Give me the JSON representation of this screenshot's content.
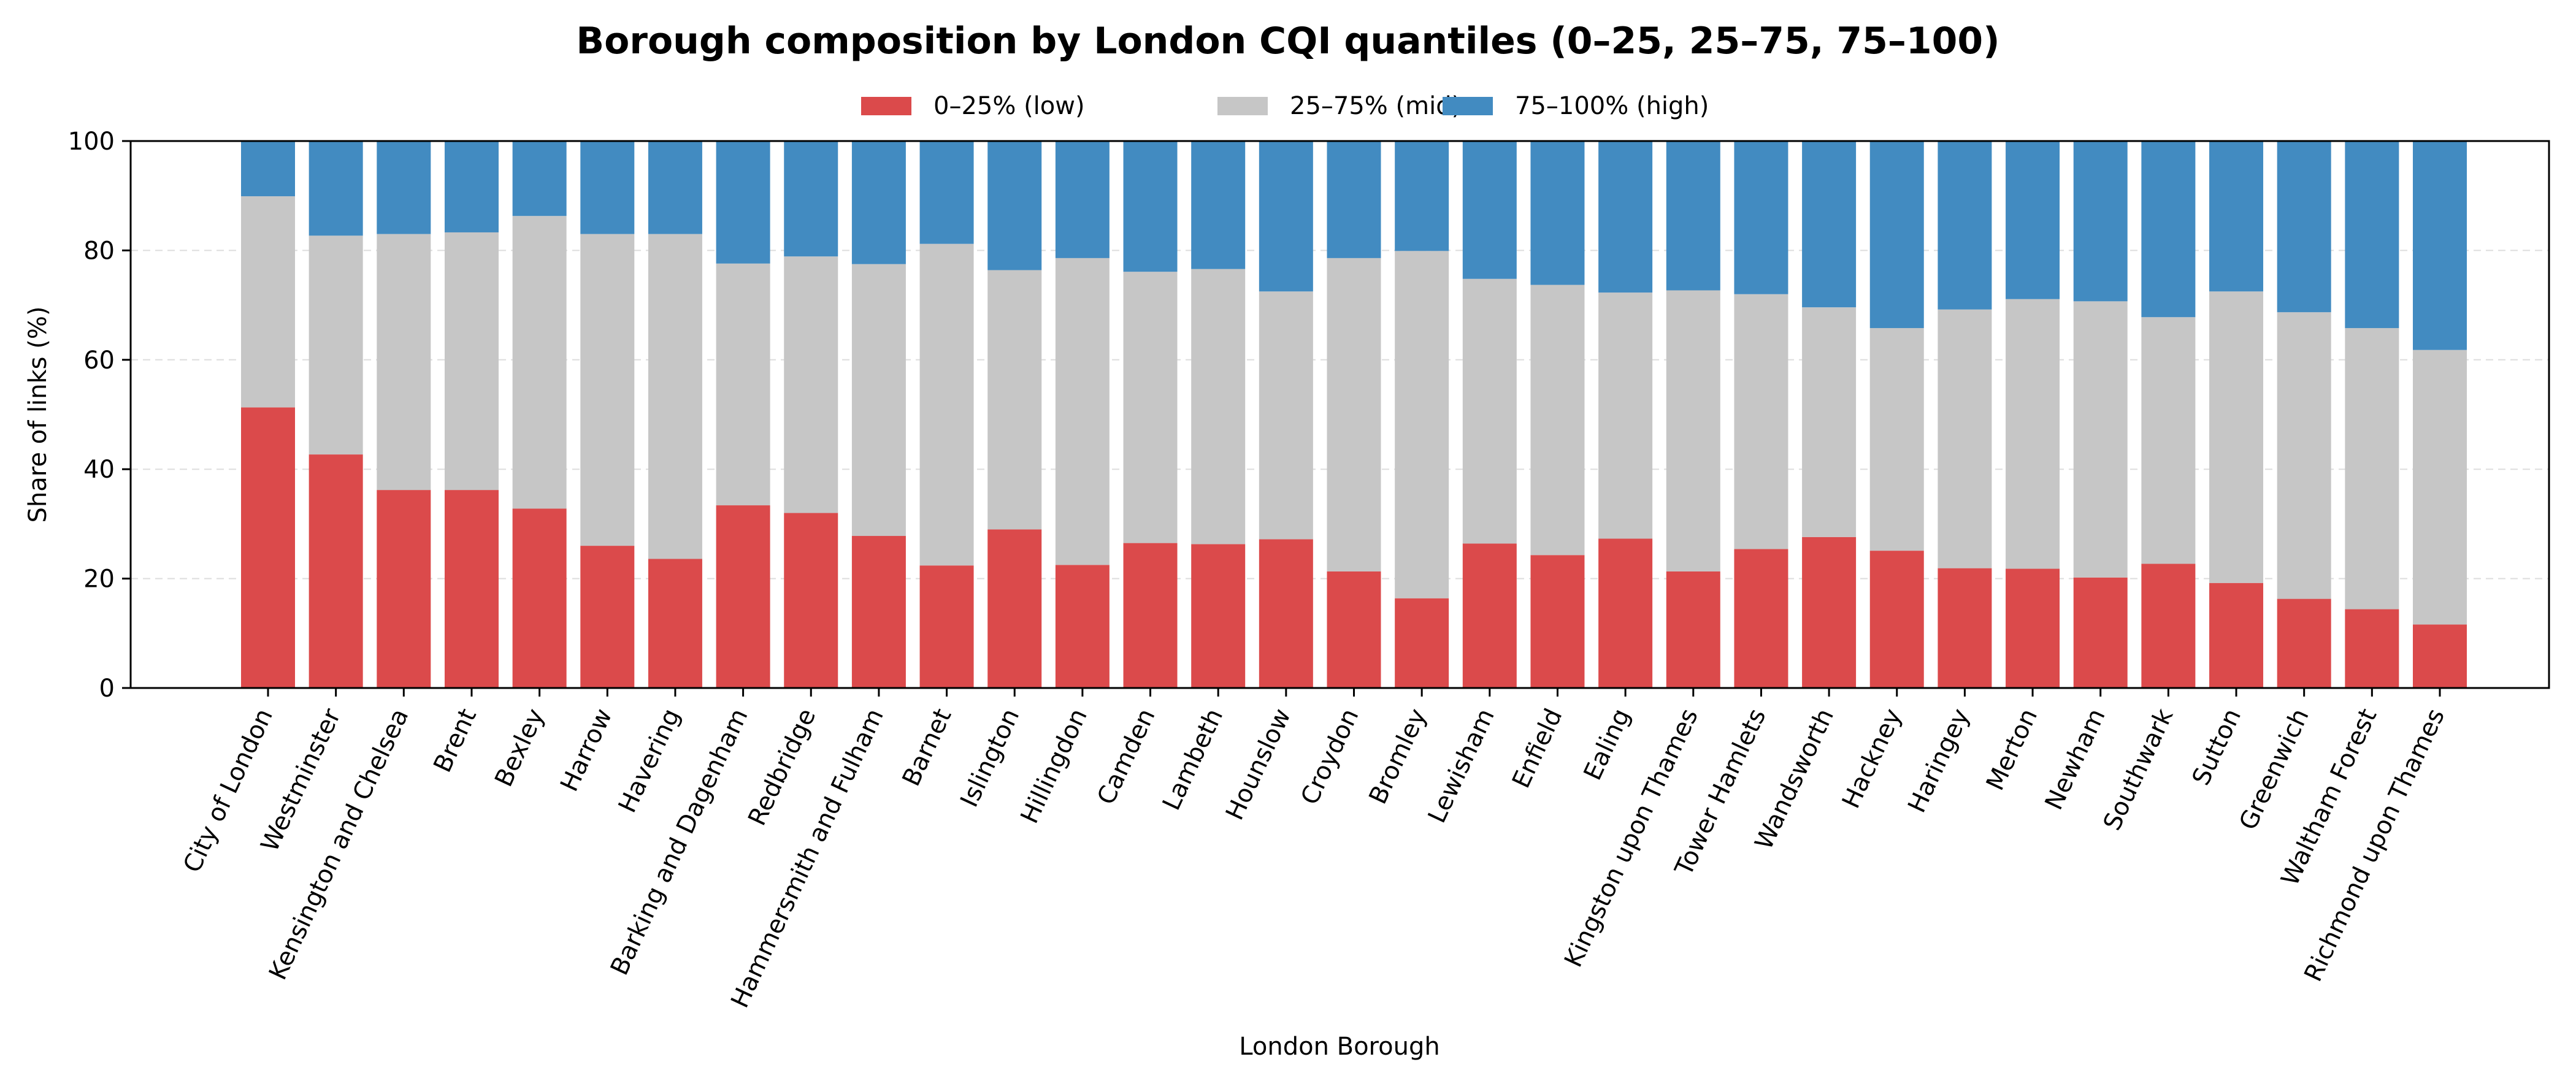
{
  "chart_data": {
    "type": "bar",
    "stacked": true,
    "title": "Borough composition by London CQI quantiles (0–25, 25–75, 75–100)",
    "xlabel": "London Borough",
    "ylabel": "Share of links (%)",
    "ylim": [
      0,
      100
    ],
    "yticks": [
      0,
      20,
      40,
      60,
      80,
      100
    ],
    "grid": "y-dashed",
    "legend": "top-center",
    "categories": [
      "City of London",
      "Westminster",
      "Kensington and Chelsea",
      "Brent",
      "Bexley",
      "Harrow",
      "Havering",
      "Barking and Dagenham",
      "Redbridge",
      "Hammersmith and Fulham",
      "Barnet",
      "Islington",
      "Hillingdon",
      "Camden",
      "Lambeth",
      "Hounslow",
      "Croydon",
      "Bromley",
      "Lewisham",
      "Enfield",
      "Ealing",
      "Kingston upon Thames",
      "Tower Hamlets",
      "Wandsworth",
      "Hackney",
      "Haringey",
      "Merton",
      "Newham",
      "Southwark",
      "Sutton",
      "Greenwich",
      "Waltham Forest",
      "Richmond upon Thames"
    ],
    "series": [
      {
        "name": "0–25% (low)",
        "color": "#db4a4b",
        "values": [
          51.3,
          42.7,
          36.2,
          36.2,
          32.8,
          26.0,
          23.6,
          33.4,
          32.0,
          27.8,
          22.4,
          29.0,
          22.5,
          26.5,
          26.3,
          27.2,
          21.3,
          16.4,
          26.4,
          24.3,
          27.3,
          21.3,
          25.4,
          27.6,
          25.1,
          21.9,
          21.8,
          20.2,
          22.7,
          19.2,
          16.3,
          14.4,
          11.6
        ]
      },
      {
        "name": "25–75% (mid)",
        "color": "#c6c6c6",
        "values": [
          38.6,
          40.0,
          46.8,
          47.1,
          53.5,
          57.0,
          59.4,
          44.2,
          46.9,
          49.7,
          58.8,
          47.4,
          56.1,
          49.6,
          50.3,
          45.3,
          57.3,
          63.5,
          48.4,
          49.4,
          45.0,
          51.4,
          46.6,
          42.0,
          40.7,
          47.3,
          49.3,
          50.5,
          45.1,
          53.3,
          52.4,
          51.4,
          50.2
        ]
      },
      {
        "name": "75–100% (high)",
        "color": "#428bc1",
        "values": [
          10.1,
          17.3,
          17.0,
          16.7,
          13.7,
          17.0,
          17.0,
          22.4,
          21.1,
          22.5,
          18.8,
          23.6,
          21.4,
          23.9,
          23.4,
          27.5,
          21.4,
          20.1,
          25.2,
          26.3,
          27.7,
          27.3,
          28.0,
          30.4,
          34.2,
          30.8,
          28.9,
          29.3,
          32.2,
          27.5,
          31.3,
          34.2,
          38.2
        ]
      }
    ]
  }
}
